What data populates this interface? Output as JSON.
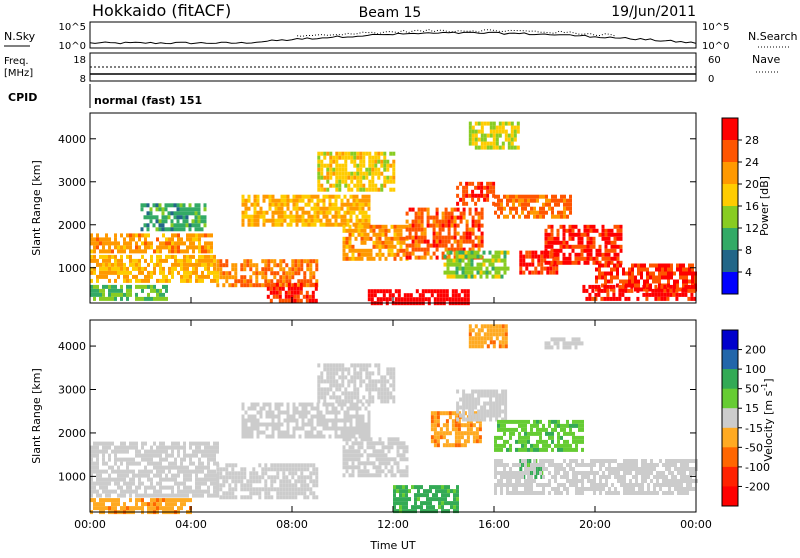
{
  "header": {
    "station": "Hokkaido (fitACF)",
    "beam": "Beam 15",
    "date": "19/Jun/2011"
  },
  "noise_panel": {
    "left_label": "N.Sky",
    "right_label": "N.Search",
    "left_ticks": [
      "10^5",
      "10^0"
    ],
    "right_ticks": [
      "10^5",
      "10^0"
    ]
  },
  "freq_panel": {
    "left_label_1": "Freq.",
    "left_label_2": "[MHz]",
    "left_ticks": [
      "18",
      "8"
    ],
    "right_label": "Nave",
    "right_ticks": [
      "60",
      "0"
    ]
  },
  "cpid_panel": {
    "label": "CPID",
    "value": "normal (fast) 151"
  },
  "power_colorbar": {
    "label": "Power [dB]",
    "ticks": [
      "28",
      "24",
      "20",
      "16",
      "12",
      "8",
      "4"
    ],
    "colors": [
      "#ff0000",
      "#ff5500",
      "#ff9900",
      "#ffcc00",
      "#88cc22",
      "#33aa66",
      "#226688",
      "#0000ff"
    ]
  },
  "velocity_colorbar": {
    "label": "Velocity [m s",
    "label_sup": "-1",
    "label_end": "]",
    "ticks": [
      "200",
      "100",
      "50",
      "15",
      "-15",
      "-50",
      "-100",
      "-200"
    ],
    "colors": [
      "#0000cc",
      "#2266aa",
      "#33aa55",
      "#66cc33",
      "#cccccc",
      "#ffaa22",
      "#ff6600",
      "#ff2200",
      "#ff0000"
    ]
  },
  "chart_data": [
    {
      "type": "heatmap",
      "quantity": "Power",
      "ylabel": "Slant Range [km]",
      "yticks": [
        "1000",
        "2000",
        "3000",
        "4000"
      ],
      "ylim": [
        180,
        4600
      ],
      "xlim_hours": [
        0,
        24
      ],
      "regions": [
        {
          "t0": 0.0,
          "t1": 4.8,
          "r0": 1400,
          "r1": 1800,
          "value": 20
        },
        {
          "t0": 0.0,
          "t1": 5.0,
          "r0": 700,
          "r1": 1300,
          "value": 18
        },
        {
          "t0": 0.0,
          "t1": 3.0,
          "r0": 250,
          "r1": 600,
          "value": 10
        },
        {
          "t0": 2.0,
          "t1": 4.5,
          "r0": 1900,
          "r1": 2500,
          "value": 8
        },
        {
          "t0": 5.0,
          "t1": 9.0,
          "r0": 600,
          "r1": 1200,
          "value": 22
        },
        {
          "t0": 7.0,
          "t1": 9.0,
          "r0": 200,
          "r1": 650,
          "value": 27
        },
        {
          "t0": 6.0,
          "t1": 11.0,
          "r0": 2000,
          "r1": 2700,
          "value": 18
        },
        {
          "t0": 9.0,
          "t1": 12.0,
          "r0": 2800,
          "r1": 3700,
          "value": 16
        },
        {
          "t0": 10.0,
          "t1": 12.5,
          "r0": 1200,
          "r1": 2000,
          "value": 20
        },
        {
          "t0": 11.0,
          "t1": 15.0,
          "r0": 200,
          "r1": 500,
          "value": 29
        },
        {
          "t0": 12.5,
          "t1": 15.5,
          "r0": 1200,
          "r1": 2400,
          "value": 24
        },
        {
          "t0": 14.5,
          "t1": 16.0,
          "r0": 2500,
          "r1": 3000,
          "value": 25
        },
        {
          "t0": 15.0,
          "t1": 17.0,
          "r0": 3800,
          "r1": 4400,
          "value": 14
        },
        {
          "t0": 16.0,
          "t1": 19.0,
          "r0": 2200,
          "r1": 2700,
          "value": 23
        },
        {
          "t0": 17.0,
          "t1": 18.5,
          "r0": 850,
          "r1": 1400,
          "value": 26
        },
        {
          "t0": 18.0,
          "t1": 21.0,
          "r0": 1100,
          "r1": 2000,
          "value": 27
        },
        {
          "t0": 20.0,
          "t1": 24.0,
          "r0": 500,
          "r1": 1100,
          "value": 26
        },
        {
          "t0": 19.5,
          "t1": 24.0,
          "r0": 250,
          "r1": 600,
          "value": 28
        },
        {
          "t0": 14.0,
          "t1": 16.5,
          "r0": 800,
          "r1": 1400,
          "value": 12
        }
      ]
    },
    {
      "type": "heatmap",
      "quantity": "Velocity",
      "ylabel": "Slant Range [km]",
      "yticks": [
        "1000",
        "2000",
        "3000",
        "4000"
      ],
      "ylim": [
        180,
        4600
      ],
      "xlabel": "Time UT",
      "xticks": [
        "00:00",
        "04:00",
        "08:00",
        "12:00",
        "16:00",
        "20:00",
        "00:00"
      ],
      "xlim_hours": [
        0,
        24
      ],
      "regions": [
        {
          "t0": 0.0,
          "t1": 5.0,
          "r0": 600,
          "r1": 1800,
          "value": 0
        },
        {
          "t0": 0.0,
          "t1": 4.0,
          "r0": 200,
          "r1": 500,
          "value": -40
        },
        {
          "t0": 5.0,
          "t1": 9.0,
          "r0": 500,
          "r1": 1300,
          "value": 0
        },
        {
          "t0": 6.0,
          "t1": 11.0,
          "r0": 1900,
          "r1": 2700,
          "value": 0
        },
        {
          "t0": 9.0,
          "t1": 12.0,
          "r0": 2700,
          "r1": 3600,
          "value": 0
        },
        {
          "t0": 10.0,
          "t1": 12.5,
          "r0": 1000,
          "r1": 1900,
          "value": 0
        },
        {
          "t0": 12.0,
          "t1": 14.5,
          "r0": 200,
          "r1": 800,
          "value": 60
        },
        {
          "t0": 13.5,
          "t1": 15.5,
          "r0": 1700,
          "r1": 2500,
          "value": -40
        },
        {
          "t0": 14.5,
          "t1": 16.5,
          "r0": 2300,
          "r1": 3000,
          "value": 0
        },
        {
          "t0": 15.0,
          "t1": 16.5,
          "r0": 4000,
          "r1": 4500,
          "value": -40
        },
        {
          "t0": 16.0,
          "t1": 19.5,
          "r0": 1600,
          "r1": 2300,
          "value": 40
        },
        {
          "t0": 17.0,
          "t1": 18.0,
          "r0": 1000,
          "r1": 1400,
          "value": 60
        },
        {
          "t0": 16.0,
          "t1": 24.0,
          "r0": 600,
          "r1": 1400,
          "value": 0
        },
        {
          "t0": 18.0,
          "t1": 19.5,
          "r0": 4000,
          "r1": 4200,
          "value": 0
        }
      ]
    }
  ]
}
